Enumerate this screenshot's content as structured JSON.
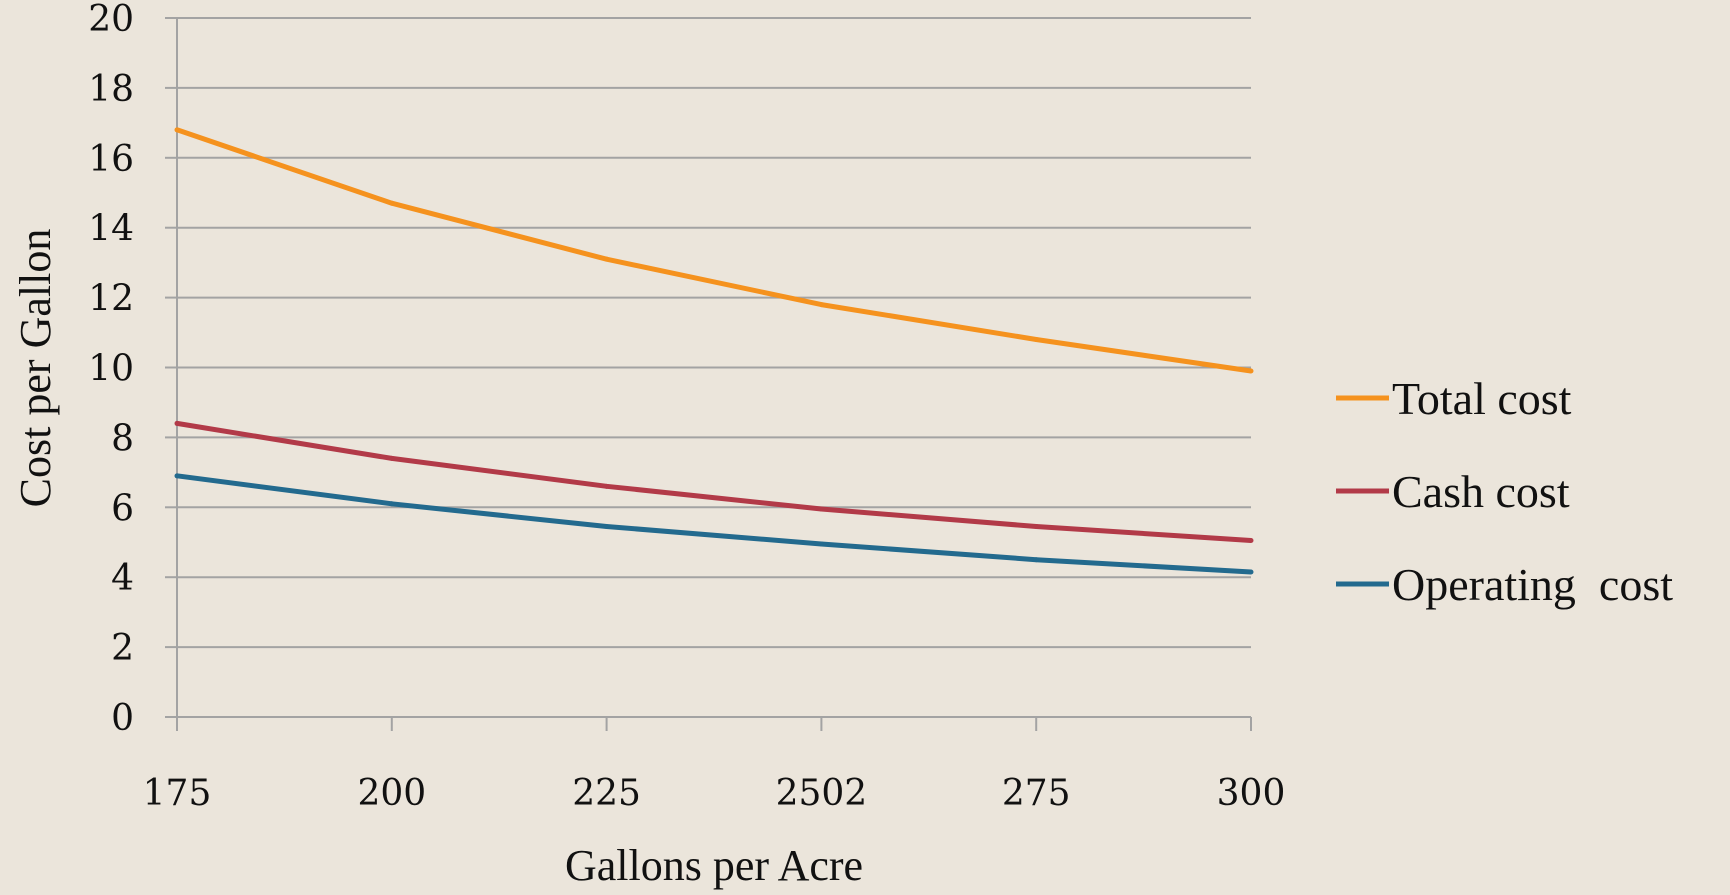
{
  "chart_data": {
    "type": "line",
    "title": "",
    "xlabel": "Gallons per Acre",
    "ylabel": "Cost per Gallon",
    "categories": [
      "175",
      "200",
      "225",
      "2502",
      "275",
      "300"
    ],
    "ylim": [
      0,
      20
    ],
    "yticks": [
      0,
      2,
      4,
      6,
      8,
      10,
      12,
      14,
      16,
      18,
      20
    ],
    "grid": true,
    "legend_position": "right",
    "series": [
      {
        "name": "Total cost",
        "color": "#f5921e",
        "values": [
          16.8,
          14.7,
          13.1,
          11.8,
          10.8,
          9.9
        ]
      },
      {
        "name": "Cash cost",
        "color": "#b23a48",
        "values": [
          8.4,
          7.4,
          6.6,
          5.95,
          5.45,
          5.05
        ]
      },
      {
        "name": "Operating  cost",
        "color": "#236a8e",
        "values": [
          6.9,
          6.1,
          5.45,
          4.95,
          4.5,
          4.15
        ]
      }
    ]
  }
}
